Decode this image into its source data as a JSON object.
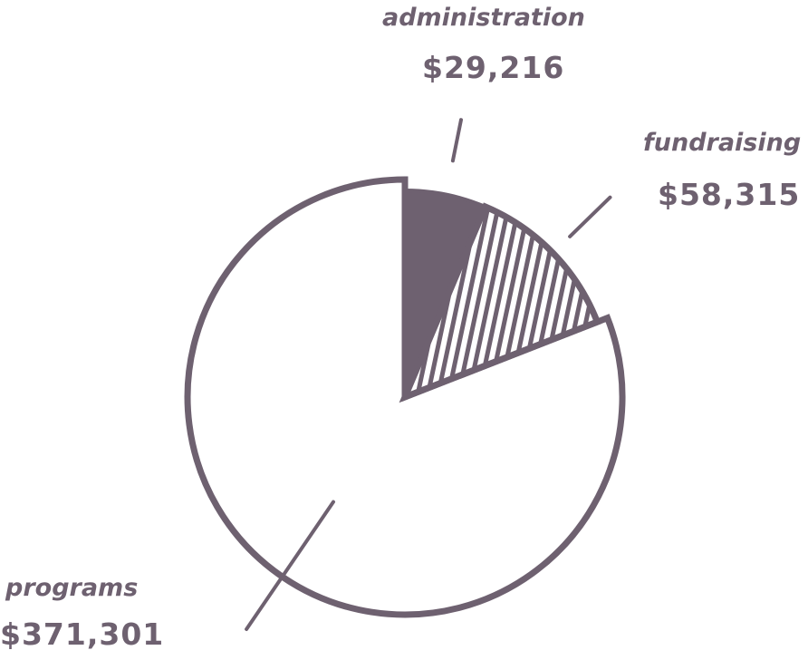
{
  "chart_data": {
    "type": "pie",
    "title": "",
    "slices": [
      {
        "label": "administration",
        "value": 29216,
        "value_label": "$29,216",
        "fill": "solid"
      },
      {
        "label": "fundraising",
        "value": 58315,
        "value_label": "$58,315",
        "fill": "hatched"
      },
      {
        "label": "programs",
        "value": 371301,
        "value_label": "$371,301",
        "fill": "empty"
      }
    ],
    "legend": "none",
    "colors": {
      "ink": "#6e6170",
      "background": "#ffffff"
    }
  }
}
